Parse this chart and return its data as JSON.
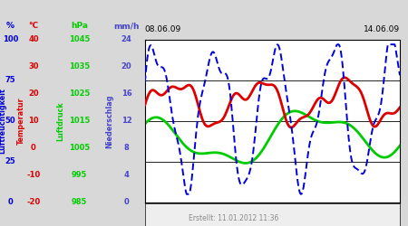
{
  "title_left": "08.06.09",
  "title_right": "14.06.09",
  "footer": "Erstellt: 11.01.2012 11:36",
  "axis_units": {
    "percent": "%",
    "celsius": "°C",
    "hpa": "hPa",
    "mmh": "mm/h"
  },
  "humidity_color": "#0000dd",
  "temp_color": "#dd0000",
  "pressure_color": "#00cc00",
  "precip_color": "#4444cc",
  "outer_bg": "#d8d8d8",
  "chart_bg": "#ffffff",
  "footer_bg": "#eeeeee",
  "hum_ticks": [
    0,
    25,
    50,
    75,
    100
  ],
  "temp_ticks": [
    -20,
    -10,
    0,
    10,
    20,
    30,
    40
  ],
  "pres_ticks": [
    985,
    995,
    1005,
    1015,
    1025,
    1035,
    1045
  ],
  "prec_ticks": [
    0,
    4,
    8,
    12,
    16,
    20,
    24
  ],
  "hum_min": 0,
  "hum_max": 100,
  "temp_min": -20,
  "temp_max": 40,
  "pres_min": 985,
  "pres_max": 1045,
  "prec_min": 0,
  "prec_max": 24,
  "n_points": 300
}
